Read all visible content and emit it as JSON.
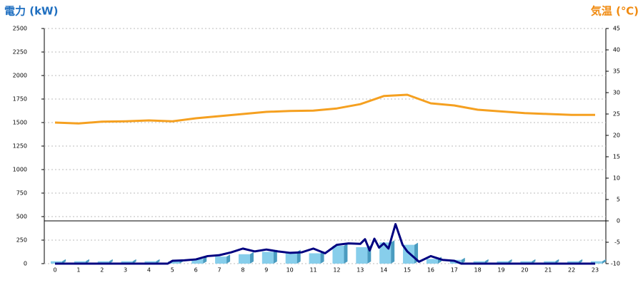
{
  "chart_data": {
    "type": "combo",
    "title": "電力 (kW)",
    "y2_title": "気温 (℃)",
    "categories": [
      0,
      1,
      2,
      3,
      4,
      5,
      6,
      7,
      8,
      9,
      10,
      11,
      12,
      13,
      14,
      15,
      16,
      17,
      18,
      19,
      20,
      21,
      22,
      23
    ],
    "ylim": [
      0,
      2500
    ],
    "yticks": [
      0,
      250,
      500,
      750,
      1000,
      1250,
      1500,
      1750,
      2000,
      2250,
      2500
    ],
    "y2lim": [
      -10,
      45
    ],
    "y2ticks": [
      -10,
      -5,
      0,
      5,
      10,
      15,
      20,
      25,
      30,
      35,
      40,
      45
    ],
    "grid": true,
    "y2_zero_line": true,
    "series": [
      {
        "type": "bar",
        "color": "#87ceeb",
        "values": [
          25,
          25,
          25,
          25,
          25,
          25,
          50,
          75,
          100,
          125,
          125,
          110,
          190,
          175,
          225,
          200,
          50,
          40,
          25,
          25,
          25,
          25,
          25,
          25
        ]
      },
      {
        "type": "line",
        "color": "#000080",
        "x": [
          0,
          1,
          2,
          3,
          4,
          4.8,
          5,
          5.5,
          6,
          6.5,
          7,
          7.5,
          8,
          8.5,
          9,
          9.5,
          10,
          10.5,
          11,
          11.5,
          12,
          12.5,
          13,
          13.2,
          13.4,
          13.6,
          13.8,
          14,
          14.2,
          14.5,
          14.8,
          15,
          15.5,
          16,
          16.5,
          17,
          17.3,
          18,
          19,
          20,
          21,
          22,
          23
        ],
        "values": [
          0,
          0,
          0,
          0,
          0,
          0,
          30,
          35,
          45,
          80,
          90,
          120,
          160,
          130,
          150,
          130,
          115,
          120,
          160,
          110,
          200,
          215,
          210,
          260,
          140,
          265,
          170,
          215,
          160,
          420,
          200,
          130,
          20,
          80,
          40,
          30,
          0,
          0,
          0,
          0,
          0,
          0,
          0
        ]
      },
      {
        "type": "line",
        "axis": "y2",
        "color": "#f5a020",
        "values": [
          23,
          22.8,
          23.2,
          23.3,
          23.5,
          23.3,
          24,
          24.5,
          25,
          25.5,
          25.7,
          25.8,
          26.3,
          27.3,
          29.2,
          29.5,
          27.5,
          27,
          26,
          25.6,
          25.2,
          25,
          24.8,
          24.8
        ]
      }
    ]
  }
}
